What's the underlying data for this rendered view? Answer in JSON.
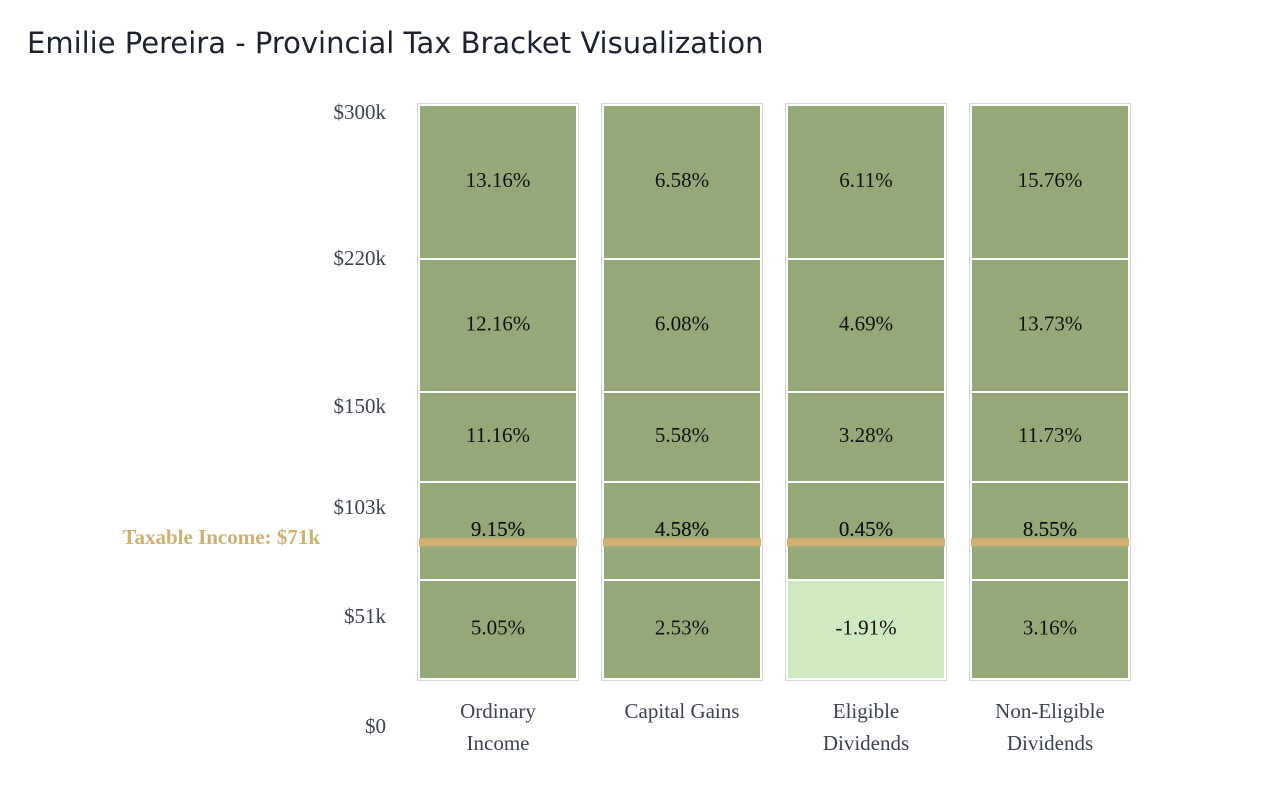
{
  "title": "Emilie Pereira - Provincial Tax Bracket Visualization",
  "colors": {
    "positive_rate": "#95a878",
    "negative_rate": "#cfeac0",
    "income_line": "#d1b072",
    "cell_border": "#ffffff",
    "column_border": "#d8d8d8"
  },
  "chart_data": {
    "type": "bar",
    "stacked": true,
    "y_ticks": [
      {
        "value": 0,
        "label": "$0"
      },
      {
        "value": 51000,
        "label": "$51k"
      },
      {
        "value": 103000,
        "label": "$103k"
      },
      {
        "value": 150000,
        "label": "$150k"
      },
      {
        "value": 220000,
        "label": "$220k"
      },
      {
        "value": 300000,
        "label": "$300k"
      }
    ],
    "bracket_bounds": [
      51000,
      103000,
      150000,
      220000,
      300000
    ],
    "ylim": [
      0,
      300000
    ],
    "columns": [
      {
        "name": "Ordinary Income",
        "label_lines": [
          "Ordinary",
          "Income"
        ],
        "rates": [
          5.05,
          9.15,
          11.16,
          12.16,
          13.16
        ],
        "rate_labels": [
          "5.05%",
          "9.15%",
          "11.16%",
          "12.16%",
          "13.16%"
        ]
      },
      {
        "name": "Capital Gains",
        "label_lines": [
          "Capital Gains"
        ],
        "rates": [
          2.53,
          4.58,
          5.58,
          6.08,
          6.58
        ],
        "rate_labels": [
          "2.53%",
          "4.58%",
          "5.58%",
          "6.08%",
          "6.58%"
        ]
      },
      {
        "name": "Eligible Dividends",
        "label_lines": [
          "Eligible",
          "Dividends"
        ],
        "rates": [
          -1.91,
          0.45,
          3.28,
          4.69,
          6.11
        ],
        "rate_labels": [
          "-1.91%",
          "0.45%",
          "3.28%",
          "4.69%",
          "6.11%"
        ]
      },
      {
        "name": "Non-Eligible Dividends",
        "label_lines": [
          "Non-Eligible",
          "Dividends"
        ],
        "rates": [
          3.16,
          8.55,
          11.73,
          13.73,
          15.76
        ],
        "rate_labels": [
          "3.16%",
          "8.55%",
          "11.73%",
          "13.73%",
          "15.76%"
        ]
      }
    ],
    "taxable_income": {
      "value": 71000,
      "label": "Taxable Income: $71k"
    }
  }
}
